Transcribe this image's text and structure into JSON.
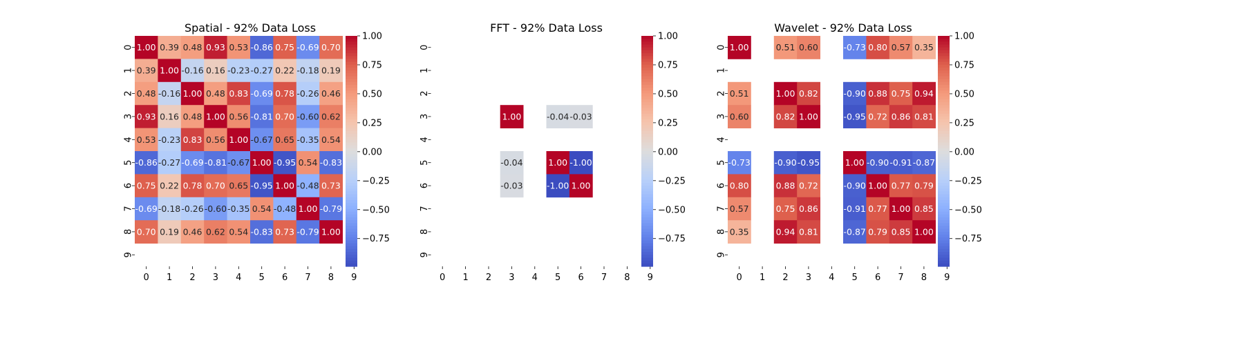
{
  "chart_data": [
    {
      "type": "heatmap",
      "title": "Spatial - 92% Data Loss",
      "x_ticks": [
        "0",
        "1",
        "2",
        "3",
        "4",
        "5",
        "6",
        "7",
        "8",
        "9"
      ],
      "y_ticks": [
        "0",
        "1",
        "2",
        "3",
        "4",
        "5",
        "6",
        "7",
        "8",
        "9"
      ],
      "colormap": "coolwarm",
      "color_range": [
        -0.99,
        1.0
      ],
      "colorbar_ticks": [
        "1.00",
        "0.75",
        "0.50",
        "0.25",
        "0.00",
        "−0.25",
        "−0.50",
        "−0.75"
      ],
      "colorbar_tick_values": [
        1.0,
        0.75,
        0.5,
        0.25,
        0.0,
        -0.25,
        -0.5,
        -0.75
      ],
      "values": [
        [
          1.0,
          0.39,
          0.48,
          0.93,
          0.53,
          -0.86,
          0.75,
          -0.69,
          0.7,
          null
        ],
        [
          0.39,
          1.0,
          -0.16,
          0.16,
          -0.23,
          -0.27,
          0.22,
          -0.18,
          0.19,
          null
        ],
        [
          0.48,
          -0.16,
          1.0,
          0.48,
          0.83,
          -0.69,
          0.78,
          -0.26,
          0.46,
          null
        ],
        [
          0.93,
          0.16,
          0.48,
          1.0,
          0.56,
          -0.81,
          0.7,
          -0.6,
          0.62,
          null
        ],
        [
          0.53,
          -0.23,
          0.83,
          0.56,
          1.0,
          -0.67,
          0.65,
          -0.35,
          0.54,
          null
        ],
        [
          -0.86,
          -0.27,
          -0.69,
          -0.81,
          -0.67,
          1.0,
          -0.95,
          0.54,
          -0.83,
          null
        ],
        [
          0.75,
          0.22,
          0.78,
          0.7,
          0.65,
          -0.95,
          1.0,
          -0.48,
          0.73,
          null
        ],
        [
          -0.69,
          -0.18,
          -0.26,
          -0.6,
          -0.35,
          0.54,
          -0.48,
          1.0,
          -0.79,
          null
        ],
        [
          0.7,
          0.19,
          0.46,
          0.62,
          0.54,
          -0.83,
          0.73,
          -0.79,
          1.0,
          null
        ],
        [
          null,
          null,
          null,
          null,
          null,
          null,
          null,
          null,
          null,
          null
        ]
      ]
    },
    {
      "type": "heatmap",
      "title": "FFT - 92% Data Loss",
      "x_ticks": [
        "0",
        "1",
        "2",
        "3",
        "4",
        "5",
        "6",
        "7",
        "8",
        "9"
      ],
      "y_ticks": [
        "0",
        "1",
        "2",
        "3",
        "4",
        "5",
        "6",
        "7",
        "8",
        "9"
      ],
      "colormap": "coolwarm",
      "color_range": [
        -0.99,
        1.0
      ],
      "colorbar_ticks": [
        "1.00",
        "0.75",
        "0.50",
        "0.25",
        "0.00",
        "−0.25",
        "−0.50",
        "−0.75"
      ],
      "colorbar_tick_values": [
        1.0,
        0.75,
        0.5,
        0.25,
        0.0,
        -0.25,
        -0.5,
        -0.75
      ],
      "values": [
        [
          null,
          null,
          null,
          null,
          null,
          null,
          null,
          null,
          null,
          null
        ],
        [
          null,
          null,
          null,
          null,
          null,
          null,
          null,
          null,
          null,
          null
        ],
        [
          null,
          null,
          null,
          null,
          null,
          null,
          null,
          null,
          null,
          null
        ],
        [
          null,
          null,
          null,
          1.0,
          null,
          -0.04,
          -0.03,
          null,
          null,
          null
        ],
        [
          null,
          null,
          null,
          null,
          null,
          null,
          null,
          null,
          null,
          null
        ],
        [
          null,
          null,
          null,
          -0.04,
          null,
          1.0,
          -1.0,
          null,
          null,
          null
        ],
        [
          null,
          null,
          null,
          -0.03,
          null,
          -1.0,
          1.0,
          null,
          null,
          null
        ],
        [
          null,
          null,
          null,
          null,
          null,
          null,
          null,
          null,
          null,
          null
        ],
        [
          null,
          null,
          null,
          null,
          null,
          null,
          null,
          null,
          null,
          null
        ],
        [
          null,
          null,
          null,
          null,
          null,
          null,
          null,
          null,
          null,
          null
        ]
      ]
    },
    {
      "type": "heatmap",
      "title": "Wavelet - 92% Data Loss",
      "x_ticks": [
        "0",
        "1",
        "2",
        "3",
        "4",
        "5",
        "6",
        "7",
        "8",
        "9"
      ],
      "y_ticks": [
        "0",
        "1",
        "2",
        "3",
        "4",
        "5",
        "6",
        "7",
        "8",
        "9"
      ],
      "colormap": "coolwarm",
      "color_range": [
        -0.99,
        1.0
      ],
      "colorbar_ticks": [
        "1.00",
        "0.75",
        "0.50",
        "0.25",
        "0.00",
        "−0.25",
        "−0.50",
        "−0.75"
      ],
      "colorbar_tick_values": [
        1.0,
        0.75,
        0.5,
        0.25,
        0.0,
        -0.25,
        -0.5,
        -0.75
      ],
      "values": [
        [
          1.0,
          null,
          0.51,
          0.6,
          null,
          -0.73,
          0.8,
          0.57,
          0.35,
          null
        ],
        [
          null,
          null,
          null,
          null,
          null,
          null,
          null,
          null,
          null,
          null
        ],
        [
          0.51,
          null,
          1.0,
          0.82,
          null,
          -0.9,
          0.88,
          0.75,
          0.94,
          null
        ],
        [
          0.6,
          null,
          0.82,
          1.0,
          null,
          -0.95,
          0.72,
          0.86,
          0.81,
          null
        ],
        [
          null,
          null,
          null,
          null,
          null,
          null,
          null,
          null,
          null,
          null
        ],
        [
          -0.73,
          null,
          -0.9,
          -0.95,
          null,
          1.0,
          -0.9,
          -0.91,
          -0.87,
          null
        ],
        [
          0.8,
          null,
          0.88,
          0.72,
          null,
          -0.9,
          1.0,
          0.77,
          0.79,
          null
        ],
        [
          0.57,
          null,
          0.75,
          0.86,
          null,
          -0.91,
          0.77,
          1.0,
          0.85,
          null
        ],
        [
          0.35,
          null,
          0.94,
          0.81,
          null,
          -0.87,
          0.79,
          0.85,
          1.0,
          null
        ],
        [
          null,
          null,
          null,
          null,
          null,
          null,
          null,
          null,
          null,
          null
        ]
      ]
    }
  ]
}
